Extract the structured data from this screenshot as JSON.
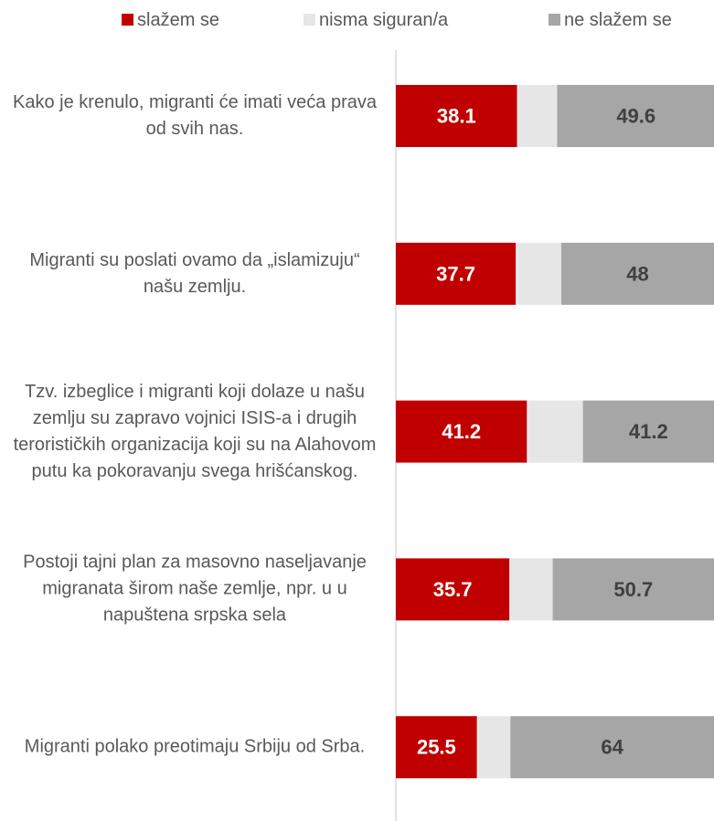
{
  "chart_data": {
    "type": "bar",
    "orientation": "horizontal",
    "stacked": true,
    "categories": [
      "Kako je krenulo, migranti će imati veća prava od svih nas.",
      "Migranti su poslati ovamo da „islamizuju“ našu zemlju.",
      "Tzv. izbeglice i migranti koji dolaze u našu zemlju su zapravo vojnici ISIS-a i drugih terorističkih organizacija koji su na Alahovom putu ka pokoravanju svega hrišćanskog.",
      "Postoji tajni plan za masovno naseljavanje migranata širom naše zemlje, npr. u u napuštena srpska sela",
      "Migranti polako preotimaju Srbiju od Srba."
    ],
    "series": [
      {
        "name": "slažem se",
        "color": "#c00000",
        "values": [
          38.1,
          37.7,
          41.2,
          35.7,
          25.5
        ]
      },
      {
        "name": "nisma siguran/a",
        "color": "#e7e6e6",
        "values": [
          12.6,
          14.3,
          17.6,
          13.6,
          10.5
        ]
      },
      {
        "name": "ne slažem se",
        "color": "#a6a6a6",
        "values": [
          49.6,
          48,
          41.2,
          50.7,
          64
        ]
      }
    ],
    "xlim": [
      0,
      100
    ],
    "legend": "top"
  }
}
